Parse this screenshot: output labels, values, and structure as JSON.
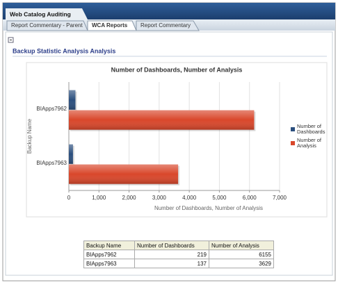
{
  "app": {
    "title": "Web Catalog Auditing",
    "tabs": [
      "Report Commentary - Parent",
      "WCA Reports",
      "Report Commentary"
    ],
    "section_title": "Backup Statistic Analysis Analysis"
  },
  "chart_data": {
    "type": "hbar",
    "title": "Number of Dashboards, Number of Analysis",
    "categories": [
      "BIApps7962",
      "BIApps7963"
    ],
    "series": [
      {
        "name": "Number of Dashboards",
        "color": "#2b4f7e",
        "values": [
          219,
          137
        ]
      },
      {
        "name": "Number of Analysis",
        "color": "#d9472b",
        "values": [
          6155,
          3629
        ]
      }
    ],
    "xlim": [
      0,
      7000
    ],
    "xticks": [
      0,
      {
        "value": 1000,
        "label": "1,000"
      },
      {
        "value": 2000,
        "label": "2,000"
      },
      {
        "value": 3000,
        "label": "3,000"
      },
      {
        "value": 4000,
        "label": "4,000"
      },
      {
        "value": 5000,
        "label": "5,000"
      },
      {
        "value": 6000,
        "label": "6,000"
      },
      {
        "value": 7000,
        "label": "7,000"
      }
    ],
    "x_label": "Number of Dashboards, Number of Analysis",
    "y_label": "Backup Name",
    "grid": true,
    "legend": "right"
  },
  "table": {
    "header": [
      "Backup Name",
      "Number of Dashboards",
      "Number of Analysis"
    ],
    "rows": [
      [
        "BIApps7962",
        219,
        6155
      ],
      [
        "BIApps7963",
        137,
        3629
      ]
    ]
  }
}
